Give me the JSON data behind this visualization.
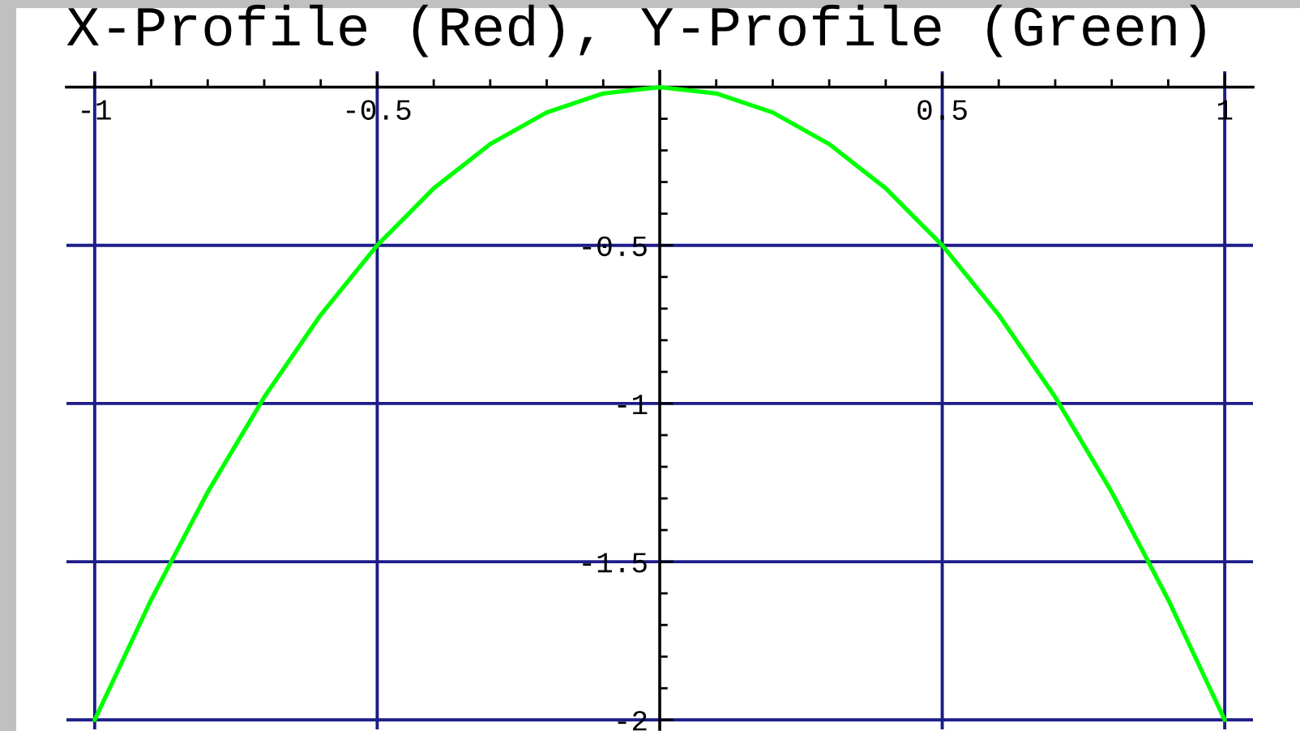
{
  "chart_data": {
    "type": "line",
    "title": "X-Profile (Red), Y-Profile (Green)",
    "x": [
      -1,
      -0.95,
      -0.9,
      -0.85,
      -0.8,
      -0.75,
      -0.7,
      -0.65,
      -0.6,
      -0.55,
      -0.5,
      -0.45,
      -0.4,
      -0.35,
      -0.3,
      -0.25,
      -0.2,
      -0.15,
      -0.1,
      -0.05,
      0,
      0.05,
      0.1,
      0.15,
      0.2,
      0.25,
      0.3,
      0.35,
      0.4,
      0.45,
      0.5,
      0.55,
      0.6,
      0.65,
      0.7,
      0.75,
      0.8,
      0.85,
      0.9,
      0.95,
      1
    ],
    "series": [
      {
        "color": "#00ff00",
        "values": [
          -2,
          -1.81,
          -1.62,
          -1.45,
          -1.28,
          -1.13,
          -0.98,
          -0.85,
          -0.72,
          -0.61,
          -0.5,
          -0.41,
          -0.32,
          -0.25,
          -0.18,
          -0.13,
          -0.08,
          -0.05,
          -0.02,
          -0.01,
          0,
          -0.01,
          -0.02,
          -0.05,
          -0.08,
          -0.13,
          -0.18,
          -0.25,
          -0.32,
          -0.41,
          -0.5,
          -0.61,
          -0.72,
          -0.85,
          -0.98,
          -1.13,
          -1.28,
          -1.45,
          -1.62,
          -1.81,
          -2
        ]
      }
    ],
    "xlim": [
      -1.05,
      1.05
    ],
    "ylim": [
      -2.03,
      0.05
    ],
    "xticks": [
      -1,
      {
        "value": -0.9,
        "label": null
      },
      {
        "value": -0.8,
        "label": null
      },
      {
        "value": -0.7,
        "label": null
      },
      {
        "value": -0.6,
        "label": null
      },
      -0.5,
      {
        "value": -0.4,
        "label": null
      },
      {
        "value": -0.3,
        "label": null
      },
      {
        "value": -0.2,
        "label": null
      },
      {
        "value": -0.1,
        "label": null
      },
      {
        "value": 0.1,
        "label": null
      },
      {
        "value": 0.2,
        "label": null
      },
      {
        "value": 0.3,
        "label": null
      },
      {
        "value": 0.4,
        "label": null
      },
      0.5,
      {
        "value": 0.6,
        "label": null
      },
      {
        "value": 0.7,
        "label": null
      },
      {
        "value": 0.8,
        "label": null
      },
      {
        "value": 0.9,
        "label": null
      },
      1
    ],
    "yticks": [
      {
        "value": -0.1,
        "label": null
      },
      {
        "value": -0.2,
        "label": null
      },
      {
        "value": -0.3,
        "label": null
      },
      {
        "value": -0.4,
        "label": null
      },
      -0.5,
      {
        "value": -0.6,
        "label": null
      },
      {
        "value": -0.7,
        "label": null
      },
      {
        "value": -0.8,
        "label": null
      },
      {
        "value": -0.9,
        "label": null
      },
      -1,
      {
        "value": -1.1,
        "label": null
      },
      {
        "value": -1.2,
        "label": null
      },
      {
        "value": -1.3,
        "label": null
      },
      {
        "value": -1.4,
        "label": null
      },
      -1.5,
      {
        "value": -1.6,
        "label": null
      },
      {
        "value": -1.7,
        "label": null
      },
      {
        "value": -1.8,
        "label": null
      },
      {
        "value": -1.9,
        "label": null
      },
      -2
    ],
    "grid": true,
    "marker": "none",
    "line_style": "solid"
  }
}
